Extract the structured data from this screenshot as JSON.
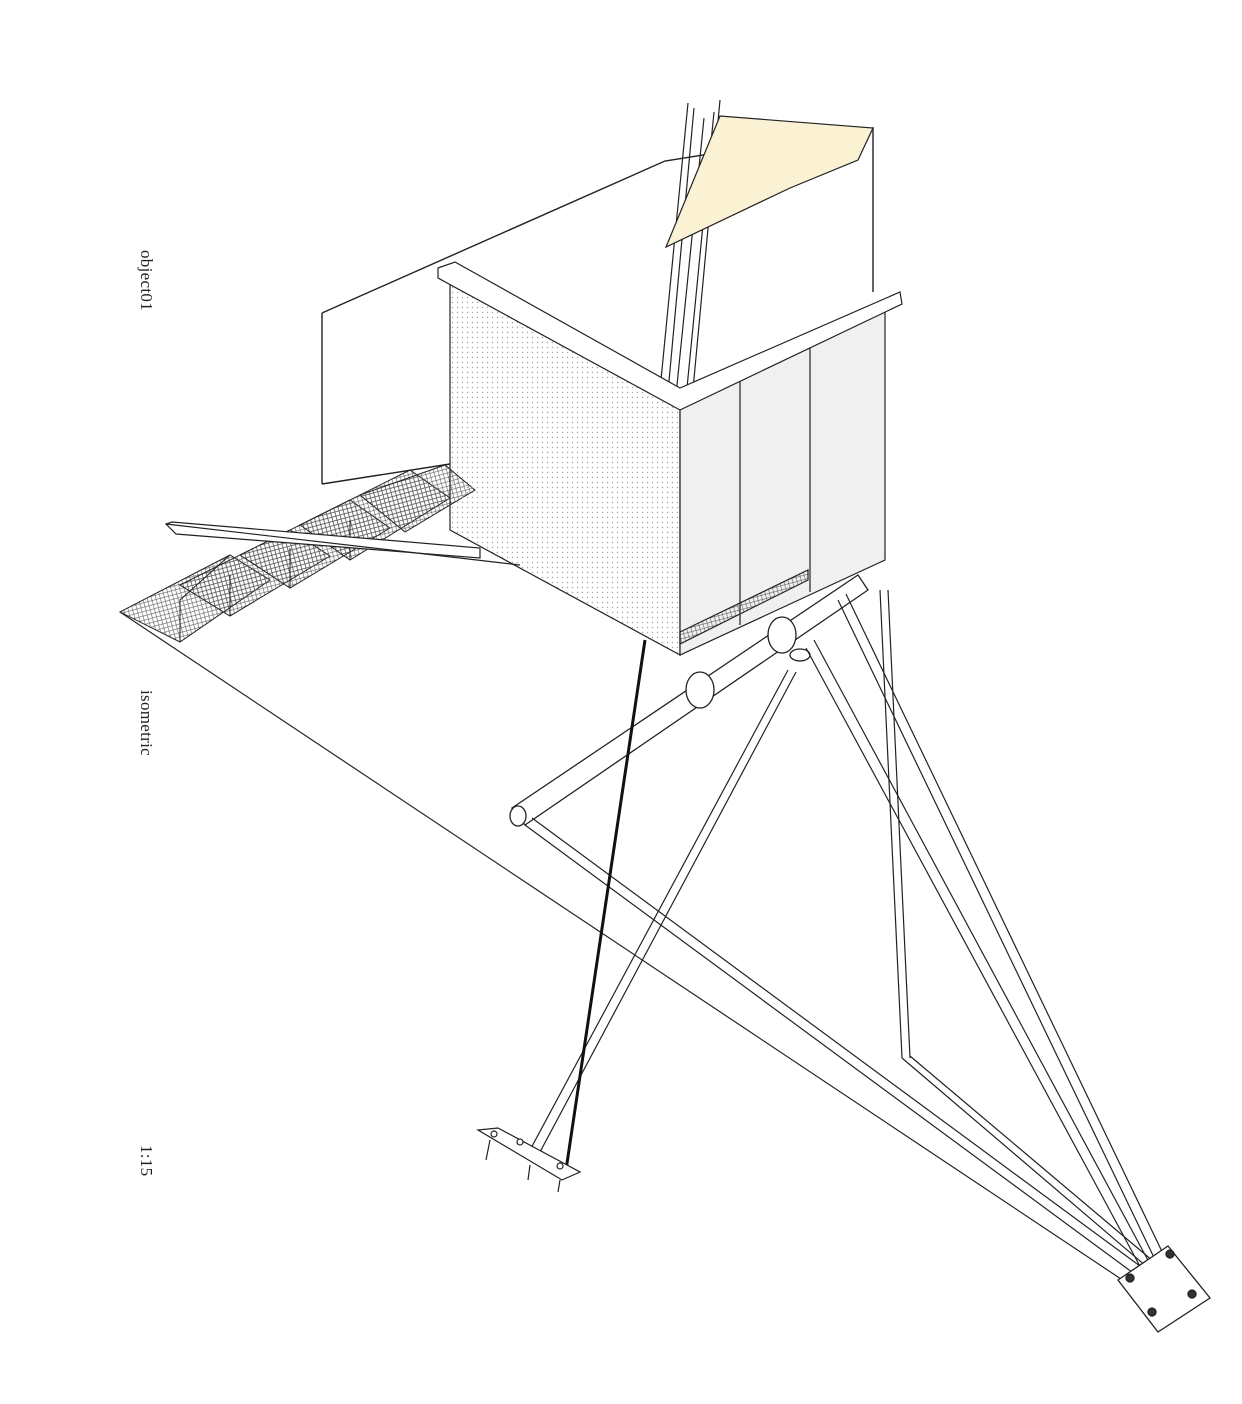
{
  "sheet": {
    "object_name": "object01",
    "view_type": "isometric",
    "scale": "1:15"
  },
  "colors": {
    "line": "#222222",
    "canopy_fill": "#fbf2d3",
    "panel_fill": "#ececec",
    "mesh": "#555555"
  }
}
